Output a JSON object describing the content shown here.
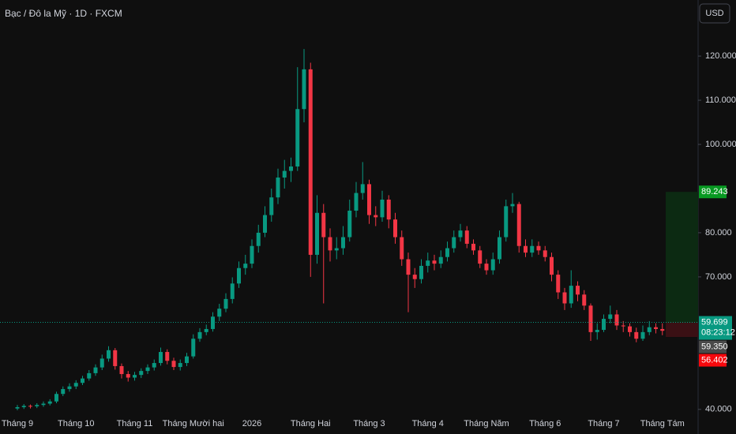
{
  "header": {
    "symbol": "Bạc / Đô la Mỹ · 1D · FXCM",
    "currency_button": "USD"
  },
  "chart_data": {
    "type": "candlestick",
    "up_color": "#089981",
    "down_color": "#f23645",
    "ylim": [
      38,
      132.7
    ],
    "yticks": [
      {
        "value": 40,
        "label": "40.000"
      },
      {
        "value": 70,
        "label": "70.000"
      },
      {
        "value": 80,
        "label": "80.000"
      },
      {
        "value": 100,
        "label": "100.000"
      },
      {
        "value": 110,
        "label": "110.000"
      },
      {
        "value": 120,
        "label": "120.000"
      }
    ],
    "categories": [
      "Tháng 9",
      null,
      null,
      null,
      null,
      null,
      null,
      null,
      null,
      "Tháng 10",
      null,
      null,
      null,
      null,
      null,
      null,
      null,
      null,
      "Tháng 11",
      null,
      null,
      null,
      null,
      null,
      null,
      null,
      null,
      "Tháng Mười hai",
      null,
      null,
      null,
      null,
      null,
      null,
      null,
      null,
      "2026",
      null,
      null,
      null,
      null,
      null,
      null,
      null,
      null,
      "Tháng Hai",
      null,
      null,
      null,
      null,
      null,
      null,
      null,
      null,
      "Tháng 3",
      null,
      null,
      null,
      null,
      null,
      null,
      null,
      null,
      "Tháng 4",
      null,
      null,
      null,
      null,
      null,
      null,
      null,
      null,
      "Tháng Năm",
      null,
      null,
      null,
      null,
      null,
      null,
      null,
      null,
      "Tháng 6",
      null,
      null,
      null,
      null,
      null,
      null,
      null,
      null,
      "Tháng 7",
      null,
      null,
      null,
      null,
      null,
      null,
      null,
      null,
      "Tháng Tám",
      null
    ],
    "open": [
      40.2,
      40.5,
      40.8,
      40.7,
      41.0,
      41.3,
      41.8,
      43.5,
      44.6,
      45.2,
      46.0,
      47.0,
      48.2,
      49.5,
      51.5,
      53.4,
      49.8,
      48.0,
      47.2,
      47.8,
      48.7,
      49.5,
      50.5,
      53.0,
      51.0,
      49.6,
      50.5,
      52.0,
      56.0,
      57.5,
      58.2,
      61.0,
      62.8,
      65.0,
      68.5,
      72.0,
      73.0,
      77.0,
      80.0,
      84.0,
      88.0,
      92.5,
      94.0,
      95.0,
      108.0,
      117.0,
      75.0,
      84.5,
      79.0,
      76.0,
      76.5,
      79.0,
      85.0,
      89.0,
      91.0,
      84.0,
      83.5,
      87.5,
      83.0,
      79.0,
      74.0,
      70.5,
      69.5,
      72.5,
      73.7,
      73.0,
      74.5,
      76.5,
      79.0,
      80.5,
      77.5,
      76.0,
      73.0,
      71.5,
      74.0,
      79.0,
      86.0,
      86.5,
      77.0,
      75.5,
      77.0,
      76.0,
      74.5,
      70.5,
      66.5,
      64.0,
      68.0,
      66.0,
      63.5,
      57.5,
      58.0,
      60.5,
      61.5,
      59.0,
      58.8,
      57.5,
      56.0,
      57.5,
      58.6,
      58.2,
      57.8
    ],
    "high": [
      41.0,
      41.2,
      41.1,
      41.4,
      41.8,
      42.3,
      44.0,
      45.2,
      45.9,
      46.6,
      47.6,
      48.9,
      50.2,
      52.4,
      54.3,
      53.9,
      50.4,
      48.7,
      48.5,
      49.3,
      50.2,
      51.3,
      54.0,
      53.6,
      51.7,
      51.3,
      52.8,
      57.0,
      58.4,
      59.2,
      62.0,
      63.9,
      66.3,
      69.9,
      73.5,
      75.0,
      78.5,
      81.8,
      86.0,
      90.0,
      94.5,
      96.5,
      97.0,
      117.5,
      121.6,
      118.5,
      88.5,
      86.5,
      81.0,
      79.0,
      81.5,
      87.5,
      91.5,
      96.0,
      92.0,
      86.0,
      89.5,
      88.5,
      84.5,
      80.5,
      75.5,
      72.0,
      74.0,
      75.5,
      75.0,
      76.0,
      78.0,
      80.5,
      82.0,
      81.5,
      78.5,
      77.0,
      74.0,
      75.5,
      80.5,
      87.5,
      89.0,
      87.0,
      78.5,
      78.5,
      78.0,
      77.0,
      75.5,
      71.5,
      67.5,
      71.5,
      69.0,
      67.0,
      64.0,
      59.5,
      61.5,
      63.5,
      62.5,
      60.0,
      59.5,
      58.5,
      59.0,
      60.0,
      59.5,
      59.5,
      60.2
    ],
    "low": [
      39.8,
      40.1,
      40.2,
      40.3,
      40.6,
      40.9,
      41.4,
      43.0,
      44.0,
      44.6,
      45.5,
      46.5,
      47.6,
      48.9,
      50.8,
      49.0,
      47.0,
      46.3,
      46.5,
      47.1,
      48.0,
      48.8,
      49.9,
      50.2,
      48.9,
      48.8,
      49.8,
      51.5,
      55.3,
      56.8,
      57.6,
      60.0,
      62.0,
      64.0,
      67.5,
      70.5,
      72.0,
      75.5,
      79.0,
      82.5,
      86.5,
      90.0,
      91.5,
      94.0,
      105.0,
      70.0,
      73.0,
      64.0,
      73.5,
      74.0,
      75.0,
      78.0,
      83.5,
      87.5,
      82.0,
      81.5,
      82.5,
      81.0,
      77.5,
      72.5,
      62.0,
      67.5,
      68.5,
      71.0,
      71.5,
      72.0,
      73.5,
      75.5,
      78.0,
      76.5,
      75.0,
      72.0,
      70.5,
      70.5,
      73.0,
      78.0,
      84.5,
      75.5,
      74.5,
      74.5,
      75.0,
      73.5,
      69.0,
      65.0,
      62.5,
      63.0,
      64.5,
      62.5,
      55.5,
      55.8,
      57.5,
      59.5,
      58.0,
      57.5,
      56.5,
      55.2,
      55.5,
      56.8,
      57.2,
      56.8,
      57.3
    ],
    "close": [
      40.5,
      40.8,
      40.7,
      41.0,
      41.3,
      41.8,
      43.5,
      44.6,
      45.2,
      46.0,
      47.0,
      48.2,
      49.5,
      51.5,
      53.4,
      49.8,
      48.0,
      47.2,
      47.8,
      48.7,
      49.5,
      50.5,
      53.0,
      51.0,
      49.6,
      50.5,
      52.0,
      56.0,
      57.5,
      58.2,
      61.0,
      62.8,
      65.0,
      68.5,
      72.0,
      73.0,
      77.0,
      80.0,
      84.0,
      88.0,
      92.5,
      94.0,
      95.0,
      108.0,
      117.0,
      75.0,
      84.5,
      79.0,
      76.0,
      76.5,
      79.0,
      85.0,
      89.0,
      91.0,
      84.0,
      83.5,
      87.5,
      83.0,
      79.0,
      74.0,
      70.5,
      69.5,
      72.5,
      73.7,
      73.0,
      74.5,
      76.5,
      79.0,
      80.5,
      77.5,
      76.0,
      73.0,
      71.5,
      74.0,
      79.0,
      86.0,
      86.5,
      77.0,
      75.5,
      77.0,
      76.0,
      74.5,
      70.5,
      66.5,
      64.0,
      68.0,
      66.0,
      63.5,
      57.5,
      58.0,
      60.5,
      61.5,
      59.0,
      58.8,
      57.5,
      56.0,
      57.5,
      58.6,
      58.2,
      57.8,
      59.699
    ],
    "last_price": 59.699,
    "countdown": "08:23:12",
    "marker_price": {
      "value": 59.35,
      "label": "59.350"
    },
    "position": {
      "target": 89.243,
      "stop": 56.402
    }
  }
}
